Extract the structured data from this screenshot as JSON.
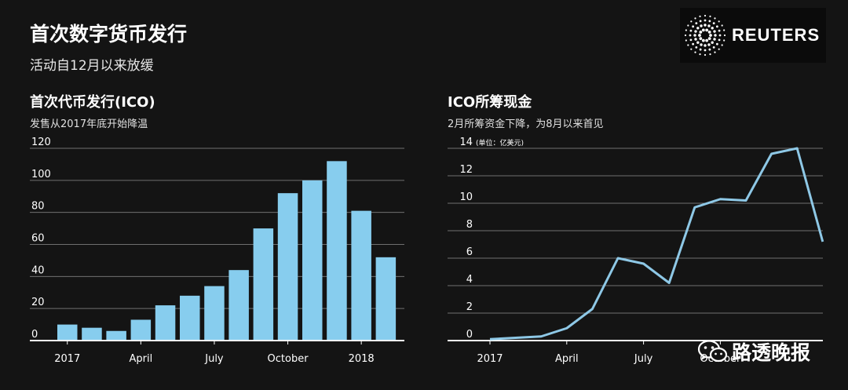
{
  "header": {
    "title": "首次数字货币发行",
    "subtitle": "活动自12月以来放缓"
  },
  "logo": {
    "text": "REUTERS",
    "icon": "reuters-dot-logo"
  },
  "left_panel": {
    "title": "首次代币发行(ICO)",
    "subtitle": "发售从2017年底开始降温"
  },
  "right_panel": {
    "title": "ICO所筹现金",
    "subtitle": "2月所筹资金下降，为8月以来首见"
  },
  "watermark": {
    "text": "路透晚报",
    "icon": "wechat-icon"
  },
  "colors": {
    "background": "#141414",
    "bar": "#87cdee",
    "line": "#8ec8e6",
    "grid": "#6f6f6f",
    "axis": "#ffffff"
  },
  "chart_data": [
    {
      "type": "bar",
      "title": "首次代币发行(ICO)",
      "subtitle": "发售从2017年底开始降温",
      "categories": [
        "2017-01",
        "2017-02",
        "2017-03",
        "2017-04",
        "2017-05",
        "2017-06",
        "2017-07",
        "2017-08",
        "2017-09",
        "2017-10",
        "2017-11",
        "2017-12",
        "2018-01",
        "2018-02"
      ],
      "values": [
        10,
        8,
        6,
        13,
        22,
        28,
        34,
        44,
        70,
        92,
        100,
        112,
        81,
        52
      ],
      "ylim": [
        0,
        120
      ],
      "yticks": [
        0,
        20,
        40,
        60,
        80,
        100,
        120
      ],
      "xtick_labels": [
        {
          "category": "2017-01",
          "label": "2017"
        },
        {
          "category": "2017-04",
          "label": "April"
        },
        {
          "category": "2017-07",
          "label": "July"
        },
        {
          "category": "2017-10",
          "label": "October"
        },
        {
          "category": "2018-01",
          "label": "2018"
        }
      ],
      "grid": true
    },
    {
      "type": "line",
      "title": "ICO所筹现金",
      "subtitle": "2月所筹资金下降，为8月以来首见",
      "unit_note": "(单位：亿美元)",
      "x": [
        "2017-01",
        "2017-02",
        "2017-03",
        "2017-04",
        "2017-05",
        "2017-06",
        "2017-07",
        "2017-08",
        "2017-09",
        "2017-10",
        "2017-11",
        "2017-12",
        "2018-01",
        "2018-02"
      ],
      "y": [
        0.1,
        0.2,
        0.3,
        0.9,
        2.3,
        6.0,
        5.6,
        4.2,
        9.7,
        10.3,
        10.2,
        13.6,
        14.0,
        7.2
      ],
      "ylim": [
        0,
        14
      ],
      "yticks": [
        0,
        2,
        4,
        6,
        8,
        10,
        12,
        14
      ],
      "xtick_labels": [
        {
          "category": "2017-01",
          "label": "2017"
        },
        {
          "category": "2017-04",
          "label": "April"
        },
        {
          "category": "2017-07",
          "label": "July"
        },
        {
          "category": "2017-10",
          "label": "October"
        }
      ],
      "grid": true
    }
  ]
}
